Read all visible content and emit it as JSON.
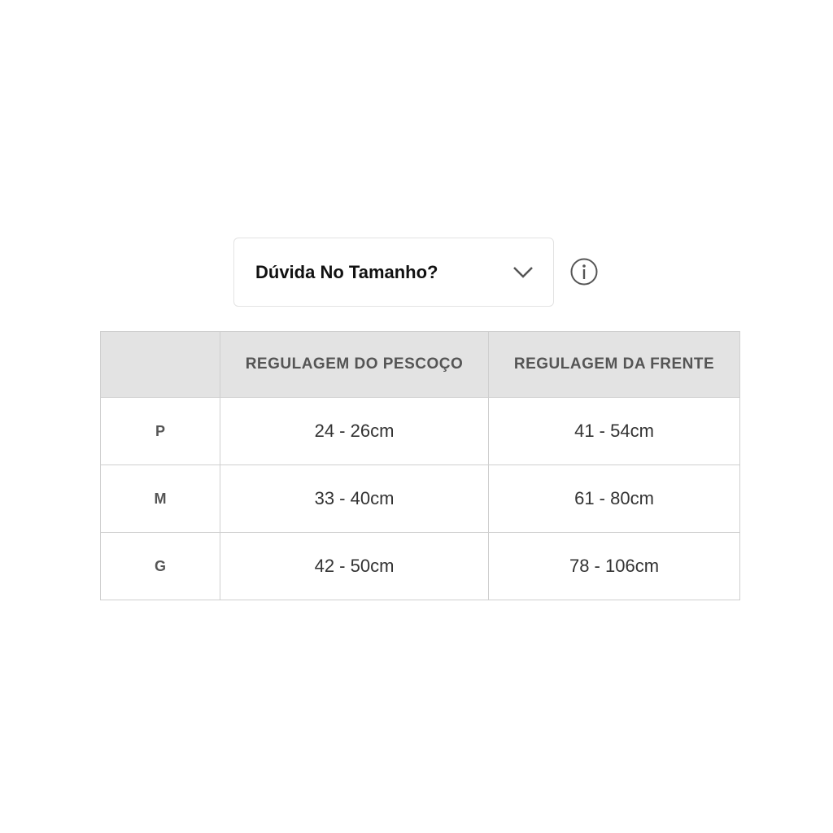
{
  "dropdown": {
    "label": "Dúvida No Tamanho?"
  },
  "table": {
    "headers": [
      "",
      "REGULAGEM DO PESCOÇO",
      "REGULAGEM DA FRENTE"
    ],
    "rows": [
      {
        "size": "P",
        "neck": "24 - 26cm",
        "front": "41 - 54cm"
      },
      {
        "size": "M",
        "neck": "33 - 40cm",
        "front": "61 - 80cm"
      },
      {
        "size": "G",
        "neck": "42 - 50cm",
        "front": "78 - 106cm"
      }
    ]
  }
}
